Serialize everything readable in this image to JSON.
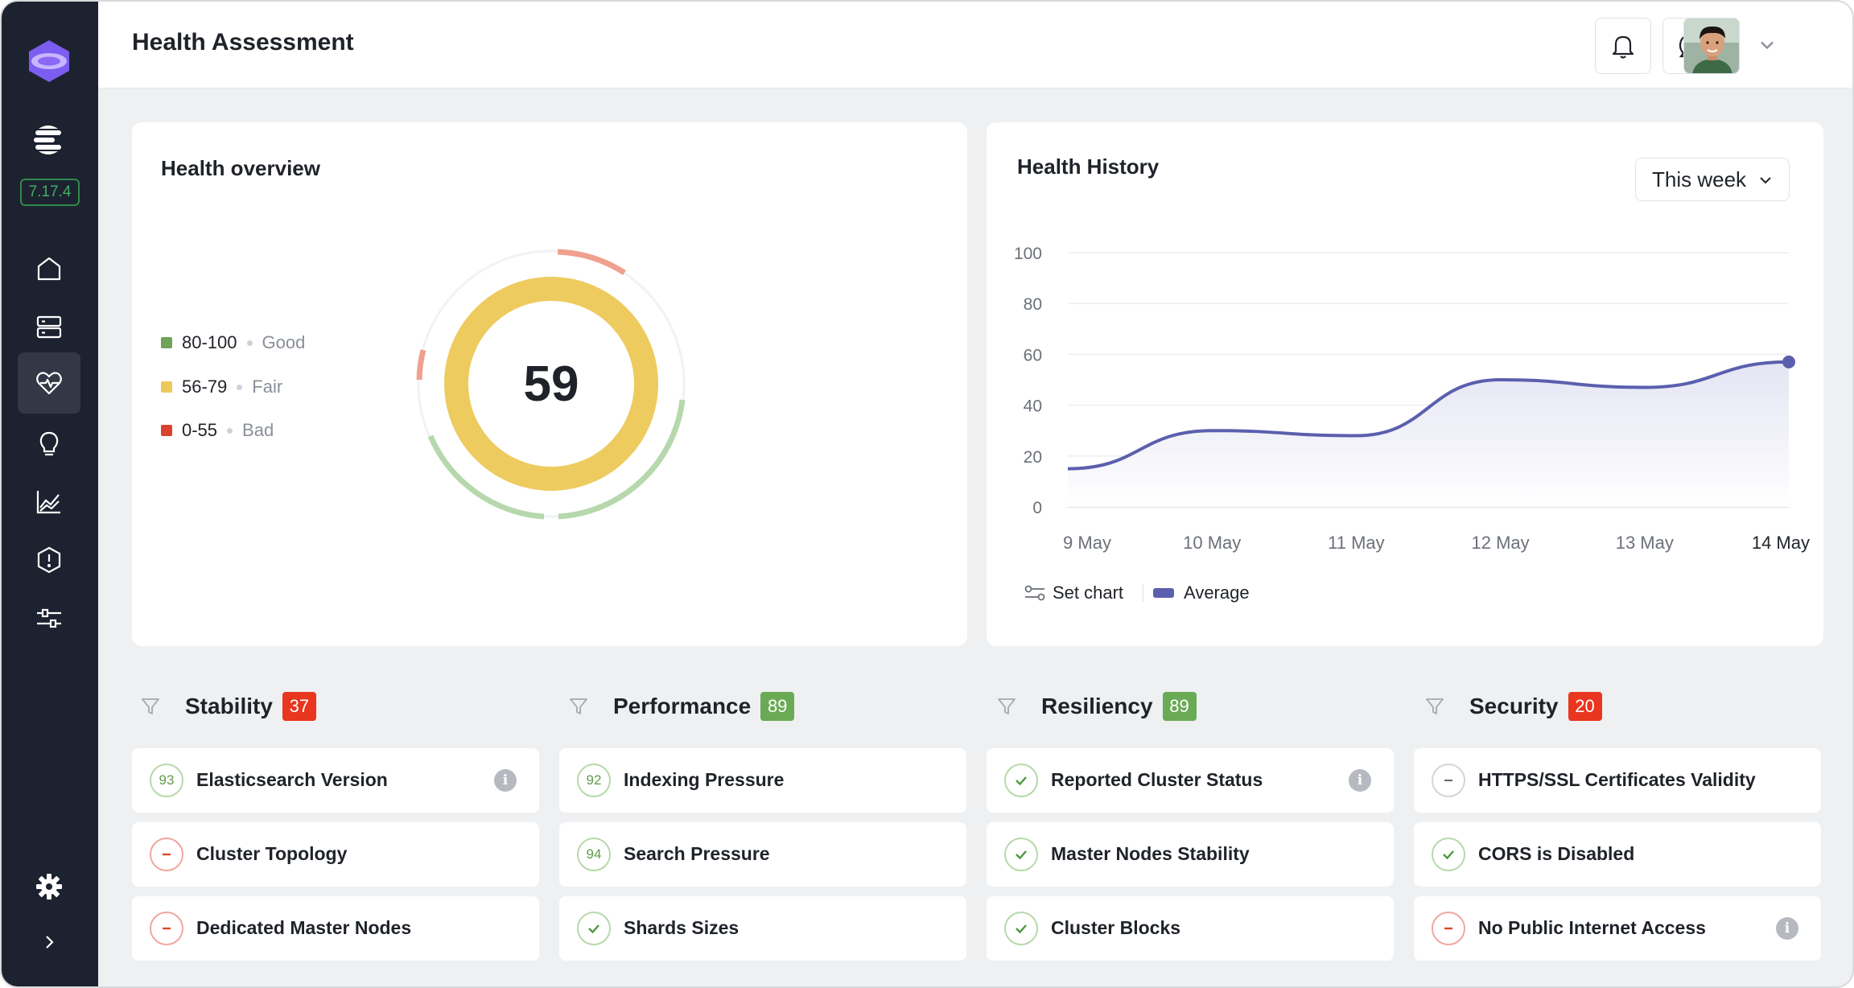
{
  "header": {
    "title": "Health Assessment"
  },
  "sidebar": {
    "version": "7.17.4",
    "items": [
      {
        "name": "home-icon"
      },
      {
        "name": "server-icon"
      },
      {
        "name": "heart-pulse-icon",
        "active": true
      },
      {
        "name": "lightbulb-icon"
      },
      {
        "name": "chart-icon"
      },
      {
        "name": "alert-icon"
      },
      {
        "name": "sliders-icon"
      },
      {
        "name": "gear-icon"
      }
    ]
  },
  "overview": {
    "title": "Health overview",
    "score": "59",
    "legend": [
      {
        "range": "80-100",
        "quality": "Good",
        "color": "#6fa35a"
      },
      {
        "range": "56-79",
        "quality": "Fair",
        "color": "#ecc95a"
      },
      {
        "range": "0-55",
        "quality": "Bad",
        "color": "#d9432c"
      }
    ]
  },
  "history": {
    "title": "Health History",
    "period": "This week",
    "set_chart": "Set chart",
    "series_label": "Average"
  },
  "chart_data": {
    "type": "line",
    "categories": [
      "9 May",
      "10 May",
      "11 May",
      "12 May",
      "13 May",
      "14 May"
    ],
    "series": [
      {
        "name": "Average",
        "values": [
          15,
          30,
          28,
          50,
          47,
          57
        ],
        "color": "#5a5fae"
      }
    ],
    "ylim": [
      0,
      100
    ],
    "yticks": [
      0,
      20,
      40,
      60,
      80,
      100
    ],
    "grid": true,
    "legend": "bottom-left"
  },
  "sections": [
    {
      "name": "Stability",
      "score": "37",
      "badge_color": "#e8361f",
      "items": [
        {
          "label": "Elasticsearch Version",
          "status": "num",
          "value": "93",
          "info": true
        },
        {
          "label": "Cluster Topology",
          "status": "bad",
          "info": false
        },
        {
          "label": "Dedicated Master Nodes",
          "status": "bad",
          "info": false
        }
      ]
    },
    {
      "name": "Performance",
      "score": "89",
      "badge_color": "#6aaa55",
      "items": [
        {
          "label": "Indexing Pressure",
          "status": "num",
          "value": "92",
          "info": false
        },
        {
          "label": "Search Pressure",
          "status": "num",
          "value": "94",
          "info": false
        },
        {
          "label": "Shards Sizes",
          "status": "ok",
          "info": false
        }
      ]
    },
    {
      "name": "Resiliency",
      "score": "89",
      "badge_color": "#6aaa55",
      "items": [
        {
          "label": "Reported Cluster Status",
          "status": "ok",
          "info": true
        },
        {
          "label": "Master Nodes Stability",
          "status": "ok",
          "info": false
        },
        {
          "label": "Cluster Blocks",
          "status": "ok",
          "info": false
        }
      ]
    },
    {
      "name": "Security",
      "score": "20",
      "badge_color": "#e8361f",
      "items": [
        {
          "label": "HTTPS/SSL Certificates Validity",
          "status": "neutral",
          "info": false
        },
        {
          "label": "CORS is Disabled",
          "status": "ok",
          "info": false
        },
        {
          "label": "No Public Internet Access",
          "status": "bad",
          "info": true
        }
      ]
    }
  ]
}
